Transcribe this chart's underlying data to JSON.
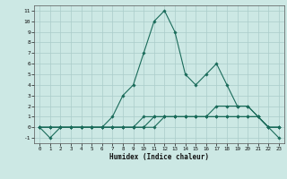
{
  "xlabel": "Humidex (Indice chaleur)",
  "background_color": "#cce8e4",
  "grid_color": "#aaccca",
  "line_color": "#1a6b5a",
  "xlim": [
    -0.5,
    23.5
  ],
  "ylim": [
    -1.5,
    11.5
  ],
  "x_ticks": [
    0,
    1,
    2,
    3,
    4,
    5,
    6,
    7,
    8,
    9,
    10,
    11,
    12,
    13,
    14,
    15,
    16,
    17,
    18,
    19,
    20,
    21,
    22,
    23
  ],
  "y_ticks": [
    -1,
    0,
    1,
    2,
    3,
    4,
    5,
    6,
    7,
    8,
    9,
    10,
    11
  ],
  "series": [
    {
      "x": [
        0,
        1,
        2,
        3,
        4,
        5,
        6,
        7,
        8,
        9,
        10,
        11,
        12,
        13,
        14,
        15,
        16,
        17,
        18,
        19,
        20,
        21,
        22,
        23
      ],
      "y": [
        0,
        -1,
        0,
        0,
        0,
        0,
        0,
        1,
        3,
        4,
        7,
        10,
        11,
        9,
        5,
        4,
        5,
        6,
        4,
        2,
        2,
        1,
        0,
        -1
      ]
    },
    {
      "x": [
        0,
        1,
        2,
        3,
        4,
        5,
        6,
        7,
        8,
        9,
        10,
        11,
        12,
        13,
        14,
        15,
        16,
        17,
        18,
        19,
        20,
        21,
        22,
        23
      ],
      "y": [
        0,
        0,
        0,
        0,
        0,
        0,
        0,
        0,
        0,
        0,
        1,
        1,
        1,
        1,
        1,
        1,
        1,
        2,
        2,
        2,
        2,
        1,
        0,
        0
      ]
    },
    {
      "x": [
        0,
        1,
        2,
        3,
        4,
        5,
        6,
        7,
        8,
        9,
        10,
        11,
        12,
        13,
        14,
        15,
        16,
        17,
        18,
        19,
        20,
        21,
        22,
        23
      ],
      "y": [
        0,
        0,
        0,
        0,
        0,
        0,
        0,
        0,
        0,
        0,
        0,
        1,
        1,
        1,
        1,
        1,
        1,
        1,
        1,
        1,
        1,
        1,
        0,
        0
      ]
    },
    {
      "x": [
        0,
        1,
        2,
        3,
        4,
        5,
        6,
        7,
        8,
        9,
        10,
        11,
        12,
        13,
        14,
        15,
        16,
        17,
        18,
        19,
        20,
        21,
        22,
        23
      ],
      "y": [
        0,
        0,
        0,
        0,
        0,
        0,
        0,
        0,
        0,
        0,
        0,
        0,
        1,
        1,
        1,
        1,
        1,
        1,
        1,
        1,
        1,
        1,
        0,
        0
      ]
    }
  ]
}
